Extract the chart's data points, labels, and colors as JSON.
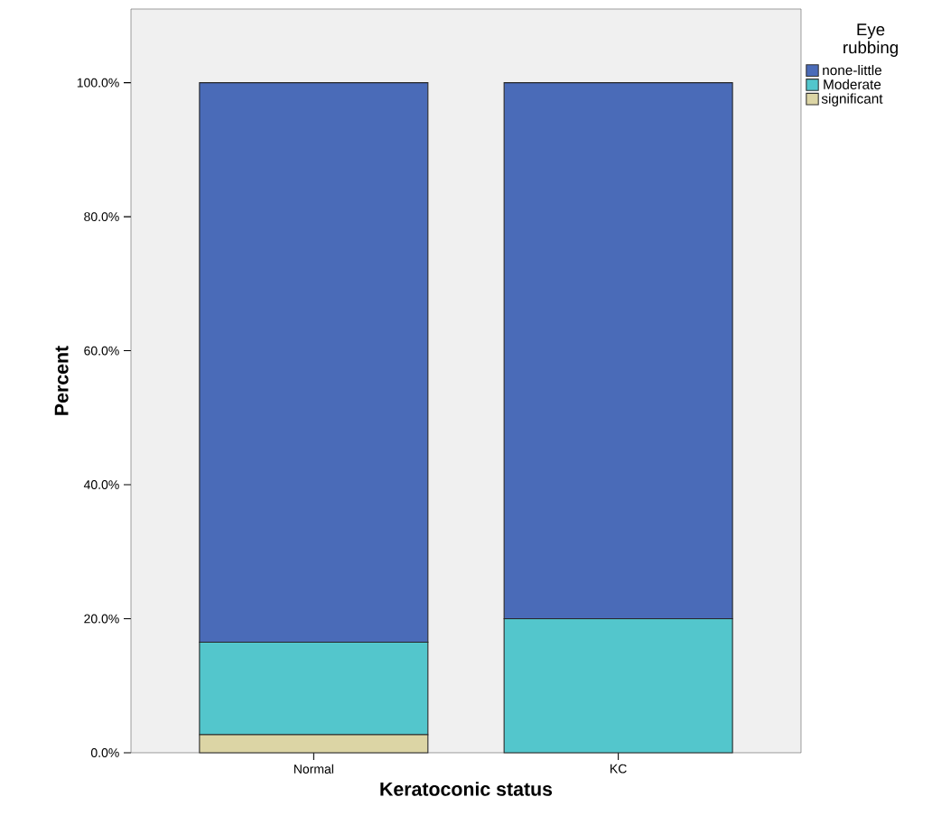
{
  "chart_data": {
    "type": "bar",
    "stacked": true,
    "xlabel": "Keratoconic status",
    "ylabel": "Percent",
    "legend_title": "Eye rubbing",
    "legend": "right",
    "categories": [
      "Normal",
      "KC"
    ],
    "series": [
      {
        "name": "significant",
        "color": "#dcd5a5",
        "values": [
          2.7,
          0
        ]
      },
      {
        "name": "Moderate",
        "color": "#53c6cc",
        "values": [
          13.8,
          20
        ]
      },
      {
        "name": "none-little",
        "color": "#4a6bb8",
        "values": [
          83.5,
          80
        ]
      }
    ],
    "ylim": [
      0,
      111
    ],
    "yticks": [
      {
        "value": 0,
        "label": "0.0%"
      },
      {
        "value": 20,
        "label": "20.0%"
      },
      {
        "value": 40,
        "label": "40.0%"
      },
      {
        "value": 60,
        "label": "60.0%"
      },
      {
        "value": 80,
        "label": "80.0%"
      },
      {
        "value": 100,
        "label": "100.0%"
      }
    ],
    "grid": false
  }
}
